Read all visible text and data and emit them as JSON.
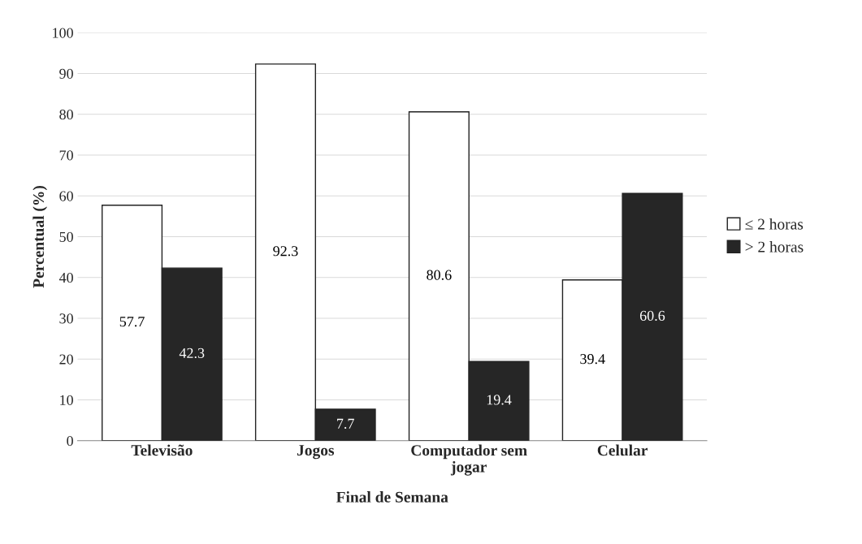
{
  "chart_data": {
    "type": "bar",
    "xlabel": "Final de Semana",
    "ylabel": "Percentual (%)",
    "categories": [
      "Televisão",
      "Jogos",
      "Computador sem\njogar",
      "Celular"
    ],
    "series": [
      {
        "name": "≤ 2 horas",
        "color": "#ffffff",
        "values": [
          57.7,
          92.3,
          80.6,
          39.4
        ]
      },
      {
        "name": "> 2 horas",
        "color": "#262626",
        "values": [
          42.3,
          7.7,
          19.4,
          60.6
        ]
      }
    ],
    "ylim": [
      0,
      100
    ],
    "yticks": [
      0,
      10,
      20,
      30,
      40,
      50,
      60,
      70,
      80,
      90,
      100
    ],
    "grid": "y",
    "legend": "right",
    "data_labels": true
  }
}
